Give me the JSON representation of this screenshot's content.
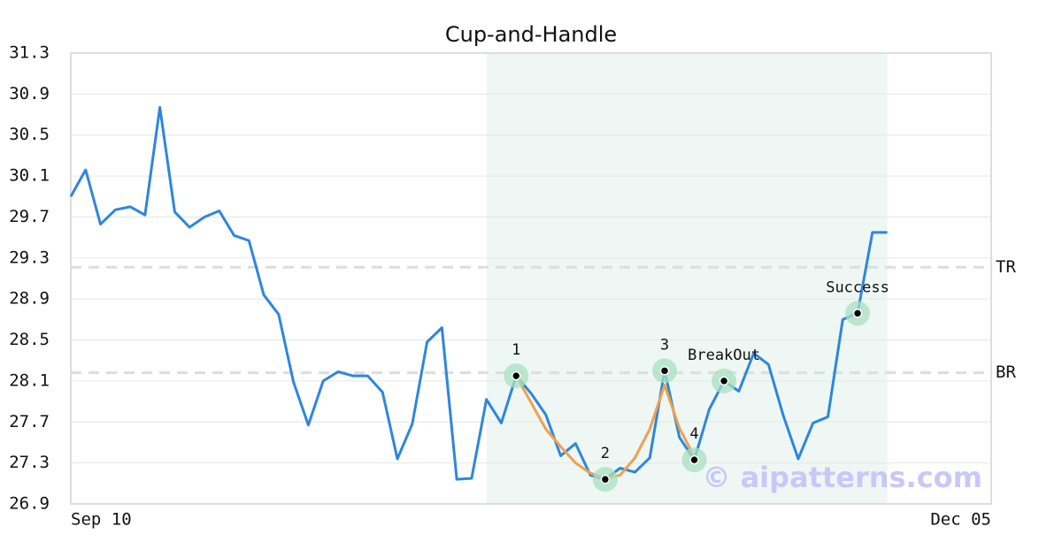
{
  "chart_data": {
    "type": "line",
    "title": "Cup-and-Handle",
    "categories": [
      "Sep 10",
      null,
      null,
      null,
      null,
      null,
      null,
      null,
      null,
      null,
      null,
      null,
      null,
      null,
      null,
      null,
      null,
      null,
      null,
      null,
      null,
      null,
      null,
      null,
      null,
      null,
      null,
      null,
      null,
      null,
      null,
      null,
      null,
      null,
      null,
      null,
      null,
      null,
      null,
      null,
      null,
      null,
      null,
      null,
      null,
      null,
      null,
      null,
      null,
      null,
      null,
      null,
      null,
      null,
      null,
      null,
      null,
      null,
      null,
      null,
      null,
      null,
      "Dec 05"
    ],
    "series": [
      {
        "color": "#2e86de",
        "values": [
          29.9,
          30.16,
          29.63,
          29.77,
          29.8,
          29.72,
          30.77,
          29.75,
          29.6,
          29.7,
          29.76,
          29.52,
          29.47,
          28.94,
          28.75,
          28.09,
          27.67,
          28.1,
          28.19,
          28.15,
          28.15,
          27.99,
          27.34,
          27.68,
          28.48,
          28.62,
          27.14,
          27.15,
          27.92,
          27.69,
          28.15,
          27.98,
          27.77,
          27.37,
          27.49,
          27.18,
          27.14,
          27.25,
          27.21,
          27.35,
          28.2,
          27.55,
          27.33,
          27.82,
          28.1,
          28.0,
          28.37,
          28.26,
          27.76,
          27.34,
          27.69,
          27.75,
          28.7,
          28.76,
          29.55,
          29.55,
          null,
          null,
          null,
          null,
          null,
          null,
          null
        ]
      },
      {
        "color": "#f0a050",
        "values": [
          null,
          null,
          null,
          null,
          null,
          null,
          null,
          null,
          null,
          null,
          null,
          null,
          null,
          null,
          null,
          null,
          null,
          null,
          null,
          null,
          null,
          null,
          null,
          null,
          null,
          null,
          null,
          null,
          null,
          null,
          28.15,
          27.89,
          27.63,
          27.46,
          27.3,
          27.2,
          27.15,
          27.18,
          27.35,
          27.63,
          28.06,
          27.64,
          27.36,
          null,
          null,
          null,
          null,
          null,
          null,
          null,
          null,
          null,
          null,
          null,
          null,
          null,
          null,
          null,
          null,
          null,
          null,
          null,
          null
        ]
      }
    ],
    "points": [
      {
        "label": "1",
        "x": 30,
        "y": 28.15
      },
      {
        "label": "2",
        "x": 36,
        "y": 27.14
      },
      {
        "label": "3",
        "x": 40,
        "y": 28.2
      },
      {
        "label": "4",
        "x": 42,
        "y": 27.33
      },
      {
        "label": "BreakOut",
        "x": 44,
        "y": 28.1
      },
      {
        "label": "Success",
        "x": 53,
        "y": 28.76
      }
    ],
    "hlines": [
      {
        "label": "TR",
        "value": 29.21
      },
      {
        "label": "BR",
        "value": 28.18
      }
    ],
    "span": [
      28,
      55
    ],
    "watermark": "© aipatterns.com",
    "ylim": [
      26.9,
      31.3
    ],
    "yticks": [
      26.9,
      27.3,
      27.7,
      28.1,
      28.5,
      28.9,
      29.3,
      29.7,
      30.1,
      30.5,
      30.9,
      31.3
    ],
    "grid": true
  }
}
